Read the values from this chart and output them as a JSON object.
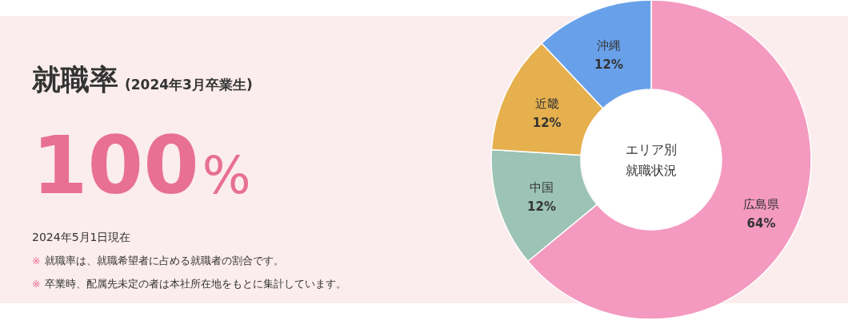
{
  "chart_data": [
    {
      "type": "other",
      "title": "就職率",
      "subtitle": "(2024年3月卒業生)",
      "annotations": [
        "100%",
        "2024年5月1日現在",
        "※ 就職率は、就職希望者に占める就職者の割合です。",
        "※ 卒業時、配属先未定の者は本社所在地をもとに集計しています。"
      ]
    },
    {
      "type": "donut",
      "categories": [
        "広島県",
        "中国",
        "近畿",
        "沖縄"
      ],
      "values": [
        64,
        12,
        12,
        12
      ],
      "colors": [
        "#f49ac1",
        "#9cc3b5",
        "#e6b04e",
        "#68a1ea"
      ],
      "value_labels": [
        "64%",
        "12%",
        "12%",
        "12%"
      ],
      "annotations": [
        "エリア別",
        "就職状況"
      ]
    }
  ]
}
